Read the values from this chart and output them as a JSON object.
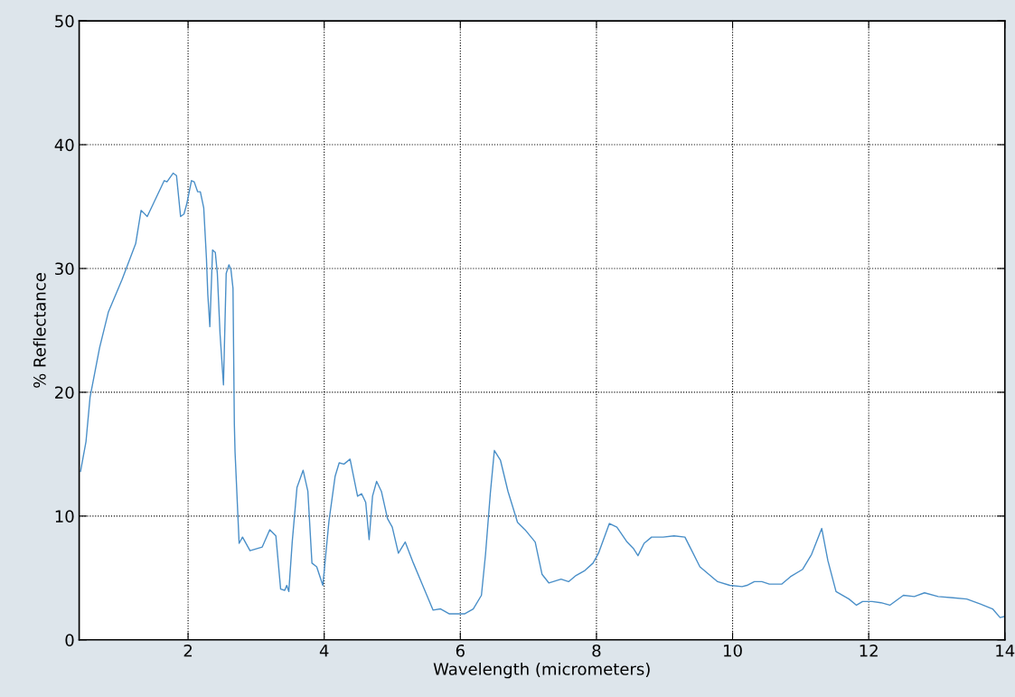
{
  "chart_data": {
    "type": "line",
    "xlabel": "Wavelength (micrometers)",
    "ylabel": "% Reflectance",
    "xlim": [
      0.4,
      14
    ],
    "ylim": [
      0,
      50
    ],
    "xticks": [
      2,
      4,
      6,
      8,
      10,
      12,
      14
    ],
    "yticks": [
      0,
      10,
      20,
      30,
      40,
      50
    ],
    "grid": true,
    "line_style": "solid",
    "series": [
      {
        "color": "#4a8fc8",
        "x": [
          0.42,
          0.5,
          0.56,
          0.7,
          0.83,
          1.03,
          1.23,
          1.31,
          1.4,
          1.65,
          1.69,
          1.78,
          1.83,
          1.89,
          1.94,
          1.98,
          2.05,
          2.09,
          2.14,
          2.18,
          2.23,
          2.27,
          2.29,
          2.32,
          2.36,
          2.4,
          2.43,
          2.47,
          2.52,
          2.56,
          2.6,
          2.63,
          2.66,
          2.68,
          2.69,
          2.75,
          2.8,
          2.91,
          3.09,
          3.2,
          3.29,
          3.36,
          3.42,
          3.45,
          3.48,
          3.53,
          3.6,
          3.69,
          3.76,
          3.82,
          3.89,
          3.98,
          4.07,
          4.16,
          4.22,
          4.29,
          4.38,
          4.49,
          4.55,
          4.61,
          4.66,
          4.71,
          4.77,
          4.84,
          4.93,
          5.0,
          5.09,
          5.19,
          5.31,
          5.44,
          5.6,
          5.71,
          5.84,
          6.02,
          6.06,
          6.19,
          6.31,
          6.37,
          6.44,
          6.5,
          6.59,
          6.7,
          6.84,
          6.95,
          7.1,
          7.2,
          7.3,
          7.48,
          7.59,
          7.7,
          7.83,
          7.95,
          8.03,
          8.19,
          8.3,
          8.45,
          8.54,
          8.61,
          8.7,
          8.81,
          8.98,
          9.14,
          9.3,
          9.52,
          9.78,
          9.96,
          10.14,
          10.21,
          10.32,
          10.43,
          10.54,
          10.72,
          10.85,
          11.03,
          11.16,
          11.31,
          11.4,
          11.52,
          11.71,
          11.82,
          11.91,
          12.05,
          12.18,
          12.31,
          12.51,
          12.67,
          12.82,
          13.02,
          13.24,
          13.44,
          13.64,
          13.82,
          13.93,
          14.0
        ],
        "values": [
          13.6,
          16,
          19.6,
          23.6,
          26.5,
          29.1,
          32.0,
          34.7,
          34.2,
          37.1,
          37.0,
          37.7,
          37.5,
          34.2,
          34.4,
          35.2,
          37.1,
          37.0,
          36.2,
          36.2,
          34.9,
          30.8,
          27.9,
          25.3,
          31.5,
          31.3,
          29.6,
          24.7,
          20.6,
          29.6,
          30.3,
          29.9,
          28.4,
          17.4,
          15.2,
          7.8,
          8.3,
          7.2,
          7.5,
          8.9,
          8.4,
          4.1,
          4.0,
          4.4,
          3.9,
          7.9,
          12.3,
          13.7,
          12.0,
          6.2,
          5.9,
          4.4,
          9.6,
          13.2,
          14.3,
          14.2,
          14.6,
          11.6,
          11.8,
          11.1,
          8.1,
          11.6,
          12.8,
          12.0,
          9.8,
          9.1,
          7.0,
          7.9,
          6.2,
          4.5,
          2.4,
          2.5,
          2.1,
          2.1,
          2.1,
          2.5,
          3.6,
          6.9,
          11.8,
          15.3,
          14.5,
          12.0,
          9.5,
          8.9,
          7.9,
          5.3,
          4.6,
          4.9,
          4.7,
          5.2,
          5.6,
          6.2,
          7.0,
          9.4,
          9.1,
          7.9,
          7.4,
          6.8,
          7.8,
          8.3,
          8.3,
          8.4,
          8.3,
          5.9,
          4.7,
          4.4,
          4.3,
          4.4,
          4.7,
          4.7,
          4.5,
          4.5,
          5.1,
          5.7,
          6.9,
          9.0,
          6.4,
          3.9,
          3.3,
          2.8,
          3.1,
          3.1,
          3.0,
          2.8,
          3.6,
          3.5,
          3.8,
          3.5,
          3.4,
          3.3,
          2.9,
          2.5,
          1.8,
          1.9
        ]
      }
    ]
  }
}
